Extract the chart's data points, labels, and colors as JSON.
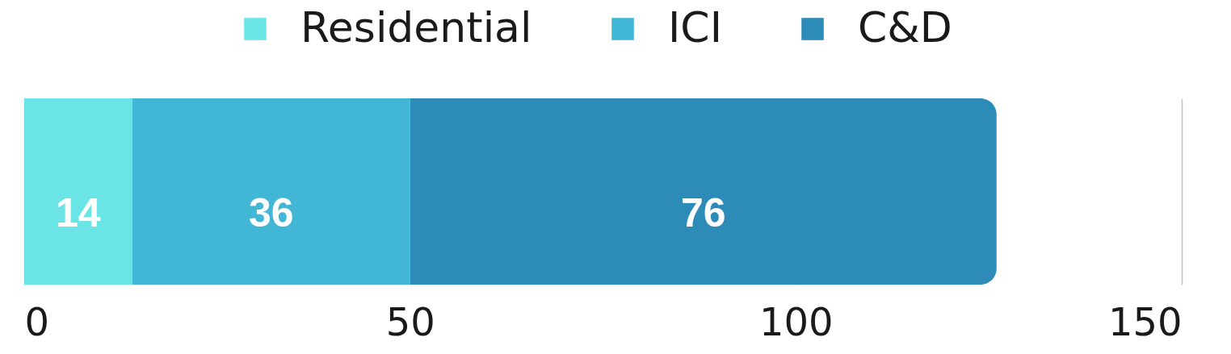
{
  "chart_data": {
    "type": "bar",
    "orientation": "horizontal",
    "stacked": true,
    "categories": [
      null
    ],
    "series": [
      {
        "name": "Residential",
        "color": "#6be4e6",
        "values": [
          14
        ]
      },
      {
        "name": "ICI",
        "color": "#42b6d5",
        "values": [
          36
        ]
      },
      {
        "name": "C&D",
        "color": "#2d8bb8",
        "values": [
          76
        ]
      }
    ],
    "xlim": [
      0,
      150
    ],
    "xticks": [
      0,
      50,
      100,
      150
    ],
    "grid": "x",
    "legend": "top",
    "data_labels": true
  }
}
